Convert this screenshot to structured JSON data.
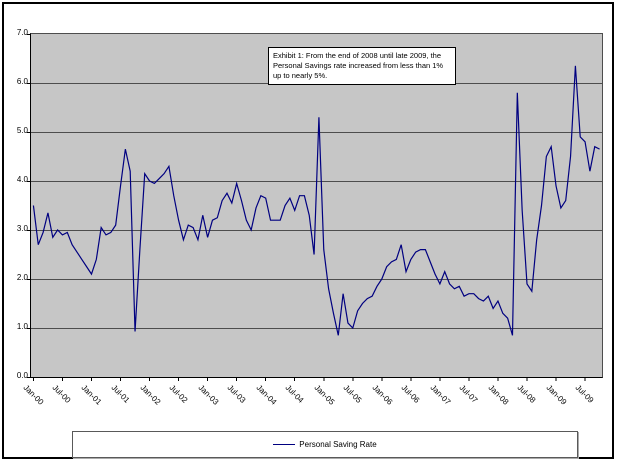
{
  "colors": {
    "series_line": "#000080",
    "plot_background": "#c6c6c6",
    "gridline": "#4d4d4d",
    "chart_border": "#000000"
  },
  "legend": {
    "label": "Personal Saving Rate"
  },
  "annotation": {
    "text": "Exhibit 1: From the end of 2008 until late 2009, the Personal Savings rate increased from less than 1% up to nearly 5%."
  },
  "chart_data": {
    "type": "line",
    "title": "",
    "xlabel": "",
    "ylabel": "",
    "ylim": [
      0.0,
      7.0
    ],
    "y_tick_step": 1.0,
    "grid": true,
    "legend_position": "bottom",
    "plot_area_color": "#c6c6c6",
    "y_tick_labels": [
      "7.0",
      "6.0",
      "5.0",
      "4.0",
      "3.0",
      "2.0",
      "1.0",
      "0.0"
    ],
    "x_tick_labels": [
      "Jan-00",
      "Jul-00",
      "Jan-01",
      "Jul-01",
      "Jan-02",
      "Jul-02",
      "Jan-03",
      "Jul-03",
      "Jan-04",
      "Jul-04",
      "Jan-05",
      "Jul-05",
      "Jan-06",
      "Jul-06",
      "Jan-07",
      "Jul-07",
      "Jan-08",
      "Jul-08",
      "Jan-09",
      "Jul-09"
    ],
    "x_months_per_tick": 6,
    "series": [
      {
        "name": "Personal Saving Rate",
        "color": "#000080",
        "start": "Jan-00",
        "frequency": "monthly",
        "values": [
          3.5,
          2.7,
          2.95,
          3.35,
          2.85,
          3.0,
          2.9,
          2.95,
          2.7,
          2.55,
          2.4,
          2.25,
          2.1,
          2.4,
          3.05,
          2.9,
          2.95,
          3.1,
          3.9,
          4.65,
          4.2,
          0.93,
          2.6,
          4.15,
          4.0,
          3.95,
          4.05,
          4.15,
          4.3,
          3.7,
          3.2,
          2.8,
          3.1,
          3.05,
          2.8,
          3.3,
          2.85,
          3.2,
          3.25,
          3.6,
          3.75,
          3.55,
          3.95,
          3.6,
          3.2,
          3.0,
          3.45,
          3.7,
          3.65,
          3.2,
          3.2,
          3.2,
          3.5,
          3.65,
          3.4,
          3.7,
          3.7,
          3.3,
          2.5,
          5.3,
          2.6,
          1.8,
          1.3,
          0.85,
          1.7,
          1.1,
          1.0,
          1.35,
          1.5,
          1.6,
          1.65,
          1.85,
          2.0,
          2.25,
          2.35,
          2.4,
          2.7,
          2.15,
          2.4,
          2.55,
          2.6,
          2.6,
          2.35,
          2.1,
          1.9,
          2.15,
          1.9,
          1.8,
          1.85,
          1.65,
          1.7,
          1.7,
          1.6,
          1.55,
          1.65,
          1.4,
          1.55,
          1.3,
          1.2,
          0.85,
          5.8,
          3.4,
          1.9,
          1.75,
          2.8,
          3.5,
          4.5,
          4.7,
          3.9,
          3.45,
          3.6,
          4.5,
          6.35,
          4.9,
          4.8,
          4.2,
          4.7,
          4.65
        ]
      }
    ]
  }
}
